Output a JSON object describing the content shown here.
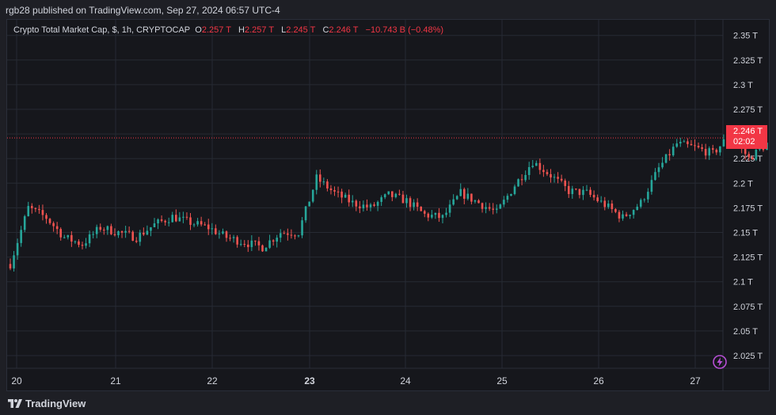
{
  "header": {
    "publisher_text": "rgb28 published on TradingView.com, Sep 27, 2024 06:57 UTC-4"
  },
  "legend": {
    "symbol": "Crypto Total Market Cap, $, 1h, CRYPTOCAP",
    "open_label": "O",
    "open": "2.257 T",
    "high_label": "H",
    "high": "2.257 T",
    "low_label": "L",
    "low": "2.245 T",
    "close_label": "C",
    "close": "2.246 T",
    "change": "−10.743 B (−0.48%)"
  },
  "price_tag": {
    "price": "2.246 T",
    "countdown": "02:02"
  },
  "footer": {
    "brand": "TradingView"
  },
  "colors": {
    "up": "#26a69a",
    "down": "#ef5350",
    "last_price": "#f23645",
    "background": "#16171c",
    "grid": "#262a33"
  },
  "chart_data": {
    "type": "candlestick",
    "title": "Crypto Total Market Cap, $, 1h, CRYPTOCAP",
    "y_ticks": [
      "2.025 T",
      "2.05 T",
      "2.075 T",
      "2.1 T",
      "2.125 T",
      "2.15 T",
      "2.175 T",
      "2.2 T",
      "2.225 T",
      "2.25 T",
      "2.275 T",
      "2.3 T",
      "2.325 T",
      "2.35 T"
    ],
    "ylim": [
      2.01,
      2.36
    ],
    "x_ticks": [
      "20",
      "21",
      "22",
      "23",
      "24",
      "25",
      "26",
      "27"
    ],
    "bold_x_tick": "23",
    "last_price": 2.246,
    "grid": true,
    "waypoints": [
      [
        0,
        2.118
      ],
      [
        5,
        2.175
      ],
      [
        10,
        2.165
      ],
      [
        15,
        2.145
      ],
      [
        20,
        2.138
      ],
      [
        25,
        2.155
      ],
      [
        35,
        2.145
      ],
      [
        40,
        2.158
      ],
      [
        45,
        2.166
      ],
      [
        50,
        2.16
      ],
      [
        55,
        2.155
      ],
      [
        60,
        2.145
      ],
      [
        65,
        2.14
      ],
      [
        70,
        2.135
      ],
      [
        75,
        2.15
      ],
      [
        80,
        2.15
      ],
      [
        85,
        2.205
      ],
      [
        90,
        2.19
      ],
      [
        95,
        2.18
      ],
      [
        100,
        2.175
      ],
      [
        105,
        2.188
      ],
      [
        110,
        2.182
      ],
      [
        115,
        2.168
      ],
      [
        120,
        2.165
      ],
      [
        125,
        2.19
      ],
      [
        130,
        2.18
      ],
      [
        135,
        2.17
      ],
      [
        140,
        2.198
      ],
      [
        145,
        2.222
      ],
      [
        150,
        2.208
      ],
      [
        155,
        2.192
      ],
      [
        160,
        2.19
      ],
      [
        165,
        2.178
      ],
      [
        170,
        2.165
      ],
      [
        175,
        2.18
      ],
      [
        180,
        2.215
      ],
      [
        185,
        2.24
      ],
      [
        190,
        2.236
      ],
      [
        195,
        2.23
      ],
      [
        200,
        2.25
      ],
      [
        205,
        2.225
      ],
      [
        210,
        2.24
      ],
      [
        212,
        2.246
      ]
    ]
  }
}
